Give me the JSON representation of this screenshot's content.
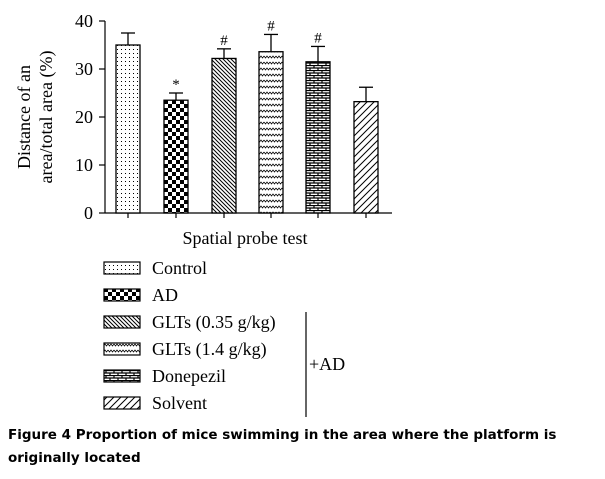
{
  "chart_data": {
    "type": "bar",
    "title": "",
    "xlabel": "Spatial probe test",
    "ylabel_line1": "Distance of an",
    "ylabel_line2": "area/total area (%)",
    "ylim": [
      0,
      40
    ],
    "yticks": [
      "0",
      "10",
      "20",
      "30",
      "40"
    ],
    "bars": [
      {
        "name": "Control",
        "value": 35.0,
        "error": 2.5,
        "pattern": "dots",
        "mark": ""
      },
      {
        "name": "AD",
        "value": 23.5,
        "error": 1.5,
        "pattern": "checker",
        "mark": "*"
      },
      {
        "name": "GLTs (0.35 g/kg)",
        "value": 32.2,
        "error": 2.0,
        "pattern": "hatch",
        "mark": "#"
      },
      {
        "name": "GLTs (1.4 g/kg)",
        "value": 33.6,
        "error": 3.6,
        "pattern": "wave",
        "mark": "#"
      },
      {
        "name": "Donepezil",
        "value": 31.5,
        "error": 3.2,
        "pattern": "brick",
        "mark": "#"
      },
      {
        "name": "Solvent",
        "value": 23.2,
        "error": 3.0,
        "pattern": "diag",
        "mark": ""
      }
    ],
    "bracket_label": "+AD"
  },
  "caption": "Figure 4 Proportion of mice swimming in the area where the platform is originally located"
}
